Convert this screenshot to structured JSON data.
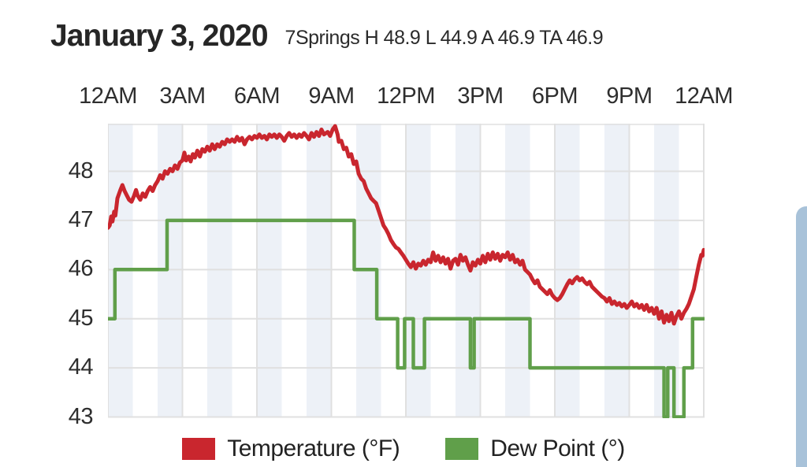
{
  "header": {
    "title": "January 3, 2020",
    "subtitle": "7Springs H 48.9 L 44.9 A 46.9 TA 46.9",
    "station": "7Springs",
    "stats": {
      "high": 48.9,
      "low": 44.9,
      "average": 46.9,
      "ta": 46.9
    }
  },
  "chart_data": {
    "type": "line",
    "title": "January 3, 2020",
    "x_axis": {
      "position": "top",
      "labels": [
        "12AM",
        "3AM",
        "6AM",
        "9AM",
        "12PM",
        "3PM",
        "6PM",
        "9PM",
        "12AM"
      ],
      "label_hours": [
        0,
        3,
        6,
        9,
        12,
        15,
        18,
        21,
        24
      ],
      "range_hours": [
        0,
        24
      ]
    },
    "y_axis": {
      "ticks": [
        43,
        44,
        45,
        46,
        47,
        48
      ],
      "range": [
        43,
        48.97
      ],
      "unit": "°F"
    },
    "plot_style": {
      "band_color": "#edf1f7",
      "band_width_hours": 1,
      "shaded_hours": "even",
      "grid_color": "#e0e0e0",
      "background": "#ffffff"
    },
    "series": [
      {
        "name": "Dew Point (°)",
        "color": "#609f4a",
        "stroke_width": 4.5,
        "points": [
          [
            0,
            45
          ],
          [
            0.28,
            45
          ],
          [
            0.28,
            46
          ],
          [
            2.38,
            46
          ],
          [
            2.38,
            47
          ],
          [
            9.92,
            47
          ],
          [
            9.92,
            46
          ],
          [
            10.83,
            46
          ],
          [
            10.83,
            45
          ],
          [
            11.67,
            45
          ],
          [
            11.67,
            44
          ],
          [
            11.95,
            44
          ],
          [
            11.95,
            45
          ],
          [
            12.3,
            45
          ],
          [
            12.3,
            44
          ],
          [
            12.75,
            44
          ],
          [
            12.75,
            45
          ],
          [
            14.6,
            45
          ],
          [
            14.6,
            44
          ],
          [
            14.75,
            44
          ],
          [
            14.75,
            45
          ],
          [
            17.0,
            45
          ],
          [
            17.0,
            44
          ],
          [
            22.4,
            44
          ],
          [
            22.4,
            43
          ],
          [
            22.55,
            43
          ],
          [
            22.55,
            44
          ],
          [
            22.8,
            44
          ],
          [
            22.8,
            43
          ],
          [
            23.2,
            43
          ],
          [
            23.2,
            44
          ],
          [
            23.55,
            44
          ],
          [
            23.55,
            45
          ],
          [
            24,
            45
          ]
        ]
      },
      {
        "name": "Temperature (°F)",
        "color": "#c9262e",
        "stroke_width": 5,
        "points": [
          [
            0,
            46.85
          ],
          [
            0.07,
            46.9
          ],
          [
            0.13,
            47.08
          ],
          [
            0.18,
            46.98
          ],
          [
            0.25,
            47.18
          ],
          [
            0.3,
            47.1
          ],
          [
            0.38,
            47.45
          ],
          [
            0.5,
            47.62
          ],
          [
            0.58,
            47.72
          ],
          [
            0.67,
            47.6
          ],
          [
            0.75,
            47.52
          ],
          [
            0.85,
            47.42
          ],
          [
            0.95,
            47.38
          ],
          [
            1.05,
            47.5
          ],
          [
            1.13,
            47.62
          ],
          [
            1.2,
            47.5
          ],
          [
            1.3,
            47.42
          ],
          [
            1.4,
            47.55
          ],
          [
            1.5,
            47.48
          ],
          [
            1.6,
            47.6
          ],
          [
            1.7,
            47.68
          ],
          [
            1.8,
            47.6
          ],
          [
            1.9,
            47.72
          ],
          [
            2.0,
            47.8
          ],
          [
            2.1,
            47.92
          ],
          [
            2.2,
            47.85
          ],
          [
            2.3,
            48.0
          ],
          [
            2.4,
            47.95
          ],
          [
            2.5,
            48.05
          ],
          [
            2.6,
            48.0
          ],
          [
            2.7,
            48.12
          ],
          [
            2.8,
            48.05
          ],
          [
            2.9,
            48.18
          ],
          [
            3.0,
            48.22
          ],
          [
            3.08,
            48.38
          ],
          [
            3.15,
            48.22
          ],
          [
            3.25,
            48.3
          ],
          [
            3.33,
            48.2
          ],
          [
            3.42,
            48.35
          ],
          [
            3.5,
            48.28
          ],
          [
            3.6,
            48.42
          ],
          [
            3.7,
            48.3
          ],
          [
            3.8,
            48.45
          ],
          [
            3.9,
            48.4
          ],
          [
            4.0,
            48.5
          ],
          [
            4.1,
            48.42
          ],
          [
            4.2,
            48.55
          ],
          [
            4.3,
            48.45
          ],
          [
            4.4,
            48.55
          ],
          [
            4.5,
            48.5
          ],
          [
            4.6,
            48.6
          ],
          [
            4.7,
            48.55
          ],
          [
            4.8,
            48.65
          ],
          [
            4.9,
            48.6
          ],
          [
            5.0,
            48.65
          ],
          [
            5.1,
            48.6
          ],
          [
            5.2,
            48.7
          ],
          [
            5.3,
            48.62
          ],
          [
            5.4,
            48.68
          ],
          [
            5.5,
            48.55
          ],
          [
            5.6,
            48.65
          ],
          [
            5.7,
            48.7
          ],
          [
            5.8,
            48.65
          ],
          [
            5.9,
            48.72
          ],
          [
            6.0,
            48.68
          ],
          [
            6.1,
            48.75
          ],
          [
            6.2,
            48.68
          ],
          [
            6.3,
            48.72
          ],
          [
            6.4,
            48.65
          ],
          [
            6.5,
            48.75
          ],
          [
            6.6,
            48.7
          ],
          [
            6.7,
            48.75
          ],
          [
            6.8,
            48.68
          ],
          [
            6.9,
            48.75
          ],
          [
            7.0,
            48.7
          ],
          [
            7.1,
            48.62
          ],
          [
            7.2,
            48.72
          ],
          [
            7.3,
            48.78
          ],
          [
            7.4,
            48.7
          ],
          [
            7.5,
            48.75
          ],
          [
            7.6,
            48.68
          ],
          [
            7.7,
            48.75
          ],
          [
            7.8,
            48.7
          ],
          [
            7.9,
            48.78
          ],
          [
            8.0,
            48.72
          ],
          [
            8.1,
            48.65
          ],
          [
            8.2,
            48.78
          ],
          [
            8.3,
            48.7
          ],
          [
            8.4,
            48.8
          ],
          [
            8.5,
            48.72
          ],
          [
            8.6,
            48.85
          ],
          [
            8.7,
            48.75
          ],
          [
            8.85,
            48.8
          ],
          [
            8.95,
            48.72
          ],
          [
            9.05,
            48.85
          ],
          [
            9.15,
            48.92
          ],
          [
            9.25,
            48.75
          ],
          [
            9.3,
            48.6
          ],
          [
            9.4,
            48.62
          ],
          [
            9.5,
            48.45
          ],
          [
            9.6,
            48.48
          ],
          [
            9.7,
            48.3
          ],
          [
            9.8,
            48.35
          ],
          [
            9.9,
            48.15
          ],
          [
            10.0,
            48.2
          ],
          [
            10.1,
            47.95
          ],
          [
            10.2,
            47.85
          ],
          [
            10.3,
            47.8
          ],
          [
            10.4,
            47.65
          ],
          [
            10.5,
            47.55
          ],
          [
            10.6,
            47.45
          ],
          [
            10.7,
            47.4
          ],
          [
            10.8,
            47.35
          ],
          [
            10.9,
            47.2
          ],
          [
            11.0,
            47.05
          ],
          [
            11.1,
            46.9
          ],
          [
            11.2,
            46.82
          ],
          [
            11.3,
            46.72
          ],
          [
            11.4,
            46.6
          ],
          [
            11.5,
            46.52
          ],
          [
            11.6,
            46.45
          ],
          [
            11.7,
            46.42
          ],
          [
            11.8,
            46.35
          ],
          [
            11.9,
            46.28
          ],
          [
            12.0,
            46.2
          ],
          [
            12.1,
            46.12
          ],
          [
            12.2,
            46.05
          ],
          [
            12.3,
            46.15
          ],
          [
            12.4,
            46.02
          ],
          [
            12.5,
            46.12
          ],
          [
            12.6,
            46.08
          ],
          [
            12.7,
            46.18
          ],
          [
            12.8,
            46.1
          ],
          [
            12.9,
            46.2
          ],
          [
            13.0,
            46.15
          ],
          [
            13.1,
            46.35
          ],
          [
            13.2,
            46.18
          ],
          [
            13.3,
            46.28
          ],
          [
            13.4,
            46.15
          ],
          [
            13.5,
            46.25
          ],
          [
            13.6,
            46.12
          ],
          [
            13.7,
            46.22
          ],
          [
            13.8,
            46.02
          ],
          [
            13.9,
            46.18
          ],
          [
            14.0,
            46.22
          ],
          [
            14.1,
            46.1
          ],
          [
            14.2,
            46.3
          ],
          [
            14.3,
            46.18
          ],
          [
            14.4,
            46.25
          ],
          [
            14.5,
            46.1
          ],
          [
            14.6,
            45.98
          ],
          [
            14.7,
            46.15
          ],
          [
            14.8,
            46.08
          ],
          [
            14.9,
            46.2
          ],
          [
            15.0,
            46.12
          ],
          [
            15.1,
            46.28
          ],
          [
            15.2,
            46.15
          ],
          [
            15.3,
            46.32
          ],
          [
            15.4,
            46.2
          ],
          [
            15.5,
            46.35
          ],
          [
            15.6,
            46.22
          ],
          [
            15.7,
            46.32
          ],
          [
            15.8,
            46.18
          ],
          [
            15.9,
            46.3
          ],
          [
            16.0,
            46.25
          ],
          [
            16.1,
            46.35
          ],
          [
            16.2,
            46.2
          ],
          [
            16.3,
            46.3
          ],
          [
            16.4,
            46.15
          ],
          [
            16.5,
            46.2
          ],
          [
            16.6,
            46.1
          ],
          [
            16.7,
            46.18
          ],
          [
            16.8,
            46.0
          ],
          [
            16.9,
            45.95
          ],
          [
            17.0,
            45.9
          ],
          [
            17.1,
            45.8
          ],
          [
            17.2,
            45.72
          ],
          [
            17.3,
            45.78
          ],
          [
            17.4,
            45.65
          ],
          [
            17.5,
            45.6
          ],
          [
            17.6,
            45.55
          ],
          [
            17.7,
            45.5
          ],
          [
            17.8,
            45.58
          ],
          [
            17.9,
            45.48
          ],
          [
            18.0,
            45.42
          ],
          [
            18.1,
            45.38
          ],
          [
            18.2,
            45.42
          ],
          [
            18.3,
            45.5
          ],
          [
            18.4,
            45.6
          ],
          [
            18.5,
            45.7
          ],
          [
            18.6,
            45.78
          ],
          [
            18.7,
            45.72
          ],
          [
            18.8,
            45.8
          ],
          [
            18.9,
            45.85
          ],
          [
            19.0,
            45.78
          ],
          [
            19.1,
            45.82
          ],
          [
            19.2,
            45.75
          ],
          [
            19.3,
            45.7
          ],
          [
            19.4,
            45.75
          ],
          [
            19.5,
            45.65
          ],
          [
            19.6,
            45.6
          ],
          [
            19.7,
            45.55
          ],
          [
            19.8,
            45.5
          ],
          [
            19.9,
            45.45
          ],
          [
            20.0,
            45.42
          ],
          [
            20.1,
            45.35
          ],
          [
            20.2,
            45.42
          ],
          [
            20.3,
            45.3
          ],
          [
            20.4,
            45.35
          ],
          [
            20.5,
            45.28
          ],
          [
            20.6,
            45.32
          ],
          [
            20.7,
            45.25
          ],
          [
            20.8,
            45.3
          ],
          [
            20.9,
            45.22
          ],
          [
            21.0,
            45.28
          ],
          [
            21.1,
            45.35
          ],
          [
            21.2,
            45.25
          ],
          [
            21.3,
            45.3
          ],
          [
            21.4,
            45.22
          ],
          [
            21.5,
            45.28
          ],
          [
            21.6,
            45.18
          ],
          [
            21.7,
            45.28
          ],
          [
            21.8,
            45.15
          ],
          [
            21.9,
            45.22
          ],
          [
            22.0,
            45.1
          ],
          [
            22.1,
            45.22
          ],
          [
            22.2,
            45.0
          ],
          [
            22.3,
            45.15
          ],
          [
            22.4,
            44.92
          ],
          [
            22.5,
            45.08
          ],
          [
            22.6,
            44.95
          ],
          [
            22.7,
            45.12
          ],
          [
            22.8,
            44.9
          ],
          [
            22.9,
            45.05
          ],
          [
            23.0,
            45.15
          ],
          [
            23.1,
            45.0
          ],
          [
            23.2,
            45.12
          ],
          [
            23.3,
            45.2
          ],
          [
            23.4,
            45.3
          ],
          [
            23.5,
            45.45
          ],
          [
            23.6,
            45.6
          ],
          [
            23.7,
            45.85
          ],
          [
            23.8,
            46.1
          ],
          [
            23.9,
            46.3
          ],
          [
            23.95,
            46.28
          ],
          [
            24.0,
            46.4
          ]
        ]
      }
    ],
    "legend_position": "bottom"
  },
  "legend": {
    "items": [
      {
        "label": "Temperature (°F)",
        "color": "#c9262e"
      },
      {
        "label": "Dew Point (°)",
        "color": "#609f4a"
      }
    ]
  }
}
